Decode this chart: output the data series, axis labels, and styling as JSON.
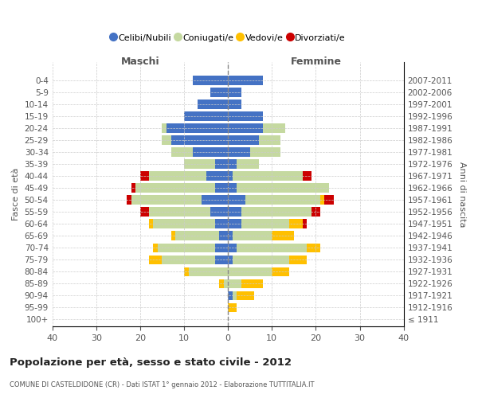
{
  "age_groups": [
    "100+",
    "95-99",
    "90-94",
    "85-89",
    "80-84",
    "75-79",
    "70-74",
    "65-69",
    "60-64",
    "55-59",
    "50-54",
    "45-49",
    "40-44",
    "35-39",
    "30-34",
    "25-29",
    "20-24",
    "15-19",
    "10-14",
    "5-9",
    "0-4"
  ],
  "birth_years": [
    "≤ 1911",
    "1912-1916",
    "1917-1921",
    "1922-1926",
    "1927-1931",
    "1932-1936",
    "1937-1941",
    "1942-1946",
    "1947-1951",
    "1952-1956",
    "1957-1961",
    "1962-1966",
    "1967-1971",
    "1972-1976",
    "1977-1981",
    "1982-1986",
    "1987-1991",
    "1992-1996",
    "1997-2001",
    "2002-2006",
    "2007-2011"
  ],
  "male": {
    "celibi": [
      0,
      0,
      0,
      0,
      0,
      3,
      3,
      2,
      3,
      4,
      6,
      3,
      5,
      3,
      8,
      13,
      14,
      10,
      7,
      4,
      8
    ],
    "coniugati": [
      0,
      0,
      0,
      1,
      9,
      12,
      13,
      10,
      14,
      14,
      16,
      18,
      13,
      7,
      5,
      2,
      1,
      0,
      0,
      0,
      0
    ],
    "vedovi": [
      0,
      0,
      0,
      1,
      1,
      3,
      1,
      1,
      1,
      0,
      0,
      0,
      0,
      0,
      0,
      0,
      0,
      0,
      0,
      0,
      0
    ],
    "divorziati": [
      0,
      0,
      0,
      0,
      0,
      0,
      0,
      0,
      0,
      2,
      1,
      1,
      2,
      0,
      0,
      0,
      0,
      0,
      0,
      0,
      0
    ]
  },
  "female": {
    "nubili": [
      0,
      0,
      1,
      0,
      0,
      1,
      2,
      1,
      3,
      3,
      4,
      2,
      1,
      2,
      5,
      7,
      8,
      8,
      3,
      3,
      8
    ],
    "coniugate": [
      0,
      0,
      1,
      3,
      10,
      13,
      16,
      9,
      11,
      16,
      17,
      21,
      16,
      5,
      7,
      5,
      5,
      0,
      0,
      0,
      0
    ],
    "vedove": [
      0,
      2,
      4,
      5,
      4,
      4,
      3,
      5,
      3,
      0,
      1,
      0,
      0,
      0,
      0,
      0,
      0,
      0,
      0,
      0,
      0
    ],
    "divorziate": [
      0,
      0,
      0,
      0,
      0,
      0,
      0,
      0,
      1,
      2,
      2,
      0,
      2,
      0,
      0,
      0,
      0,
      0,
      0,
      0,
      0
    ]
  },
  "colors": {
    "celibi": "#4472C4",
    "coniugati": "#c5d9a0",
    "vedovi": "#ffc000",
    "divorziati": "#cc0000"
  },
  "xlim": 40,
  "title": "Popolazione per età, sesso e stato civile - 2012",
  "subtitle": "COMUNE DI CASTELDIDONE (CR) - Dati ISTAT 1° gennaio 2012 - Elaborazione TUTTITALIA.IT",
  "ylabel": "Fasce di età",
  "ylabel_right": "Anni di nascita",
  "xlabel_left": "Maschi",
  "xlabel_right": "Femmine",
  "legend_labels": [
    "Celibi/Nubili",
    "Coniugati/e",
    "Vedovi/e",
    "Divorziati/e"
  ]
}
